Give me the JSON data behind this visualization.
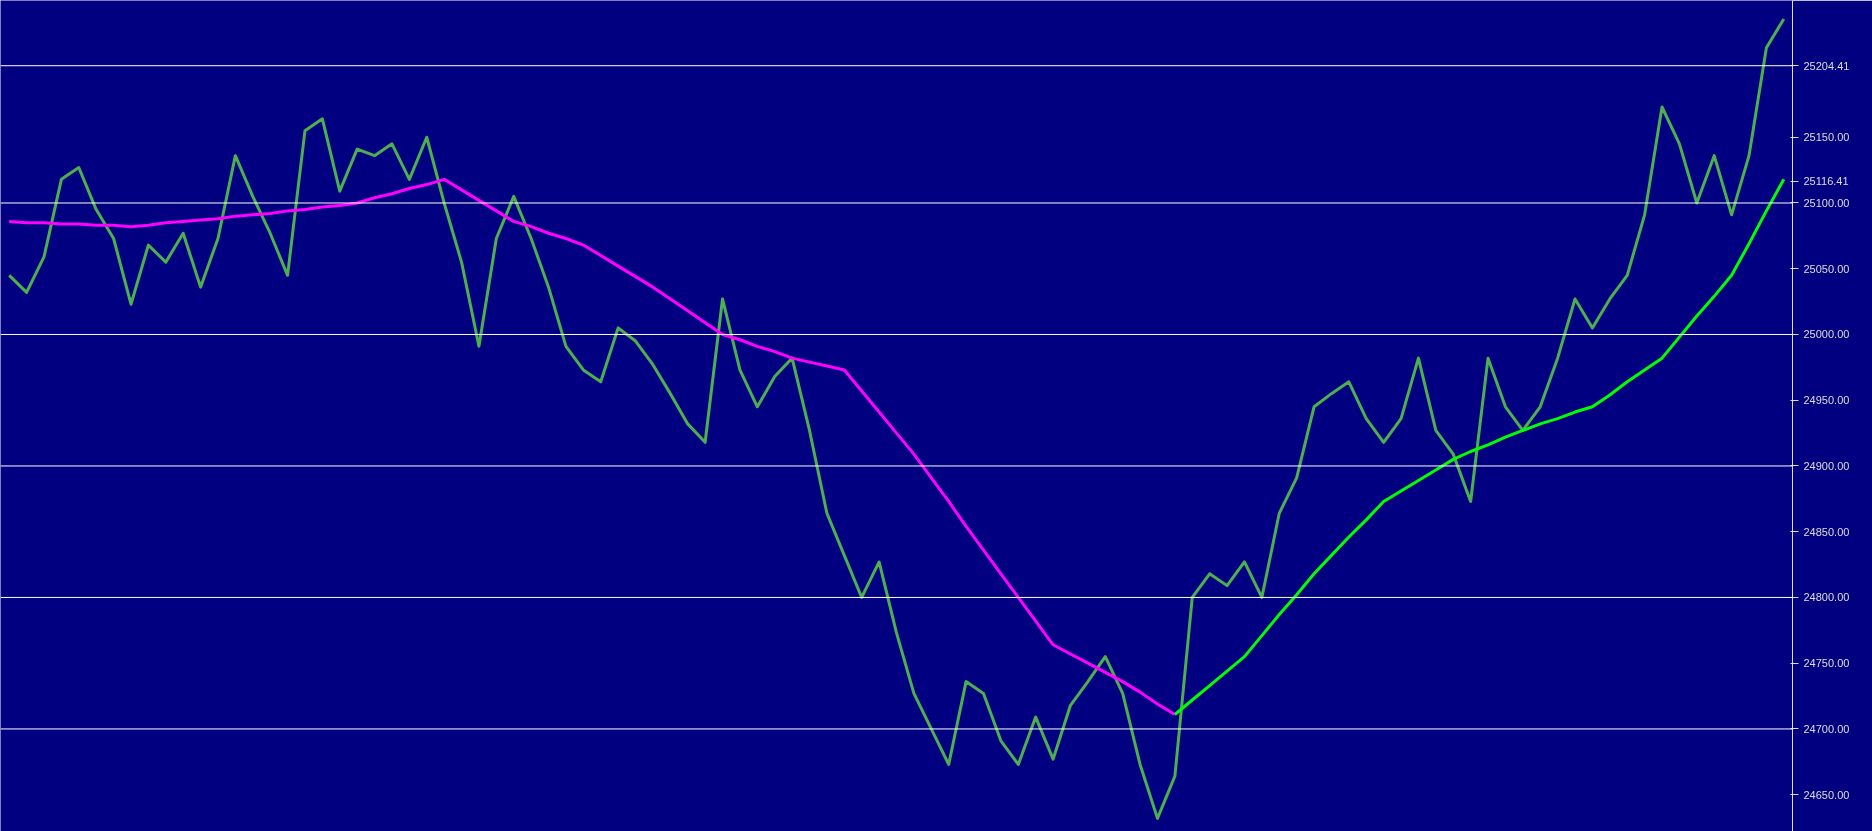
{
  "chart_data": {
    "type": "line",
    "categories": [
      null,
      null,
      null,
      null,
      null,
      null,
      null,
      null,
      null,
      null,
      null,
      null,
      null,
      null,
      null,
      null,
      null,
      null,
      null,
      null,
      null,
      null,
      null,
      null,
      null,
      null,
      null,
      null,
      null,
      null,
      null,
      null,
      null,
      null,
      null,
      null,
      null,
      null,
      null,
      null,
      null,
      null,
      null,
      null,
      null,
      null,
      null,
      null,
      null,
      null,
      null,
      null,
      null,
      null,
      null,
      null,
      null,
      null,
      null,
      null,
      null,
      null,
      null,
      null,
      null,
      null,
      null,
      null,
      null,
      null,
      null,
      null,
      null,
      null,
      null,
      null,
      null,
      null,
      null,
      null,
      null,
      null,
      null,
      null,
      null,
      null,
      null,
      null,
      null,
      null,
      null,
      null,
      null,
      null,
      null,
      null,
      null,
      null,
      null,
      null,
      null,
      null,
      null
    ],
    "series": [
      {
        "color": "#4caf50",
        "values": [
          25045,
          25032,
          25059,
          25118,
          25127,
          25095,
          25073,
          25023,
          25068,
          25055,
          25077,
          25036,
          25073,
          25136,
          25105,
          25077,
          25045,
          25155,
          25164,
          25109,
          25141,
          25136,
          25145,
          25118,
          25150,
          25100,
          25055,
          24991,
          25073,
          25105,
          25073,
          25036,
          24991,
          24973,
          24964,
          25005,
          24995,
          24977,
          24955,
          24932,
          24918,
          25027,
          24973,
          24945,
          24968,
          24982,
          24927,
          24864,
          24832,
          24800,
          24827,
          24773,
          24727,
          24700,
          24673,
          24736,
          24727,
          24691,
          24673,
          24709,
          24677,
          24718,
          24736,
          24755,
          24727,
          24673,
          24632,
          24664,
          24800,
          24818,
          24809,
          24827,
          24800,
          24864,
          24891,
          24945,
          24955,
          24964,
          24936,
          24918,
          24936,
          24982,
          24927,
          24909,
          24873,
          24982,
          24945,
          24927,
          24945,
          24982,
          25027,
          25005,
          25027,
          25045,
          25091,
          25173,
          25145,
          25100,
          25136,
          25091,
          25136,
          25218,
          25240
        ]
      },
      {
        "color": "#ff00ff",
        "values": [
          25086,
          25085,
          25085,
          25084,
          25084,
          25083,
          25083,
          25082,
          25083,
          25085,
          25086,
          25087,
          25088,
          25090,
          25091,
          25092,
          25094,
          25095,
          25097,
          25098,
          25100,
          25104,
          25107,
          25111,
          25114,
          25118,
          25110,
          25102,
          25094,
          25086,
          25082,
          25077,
          25073,
          25068,
          25060,
          25052,
          25044,
          25036,
          25027,
          25018,
          25009,
          25000,
          24996,
          24991,
          24987,
          24982,
          24979,
          24976,
          24973,
          24957,
          24941,
          24925,
          24909,
          24891,
          24873,
          24854,
          24836,
          24818,
          24800,
          24782,
          24764,
          24757,
          24750,
          24743,
          24736,
          24728,
          24719,
          24711,
          null,
          null,
          null,
          null,
          null,
          null,
          null,
          null,
          null,
          null,
          null,
          null,
          null,
          null,
          null,
          null,
          null,
          null,
          null,
          null,
          null,
          null,
          null,
          null,
          null,
          null,
          null,
          null,
          null,
          null,
          null,
          null,
          null,
          null,
          null
        ]
      },
      {
        "color": "#00ff00",
        "values": [
          null,
          null,
          null,
          null,
          null,
          null,
          null,
          null,
          null,
          null,
          null,
          null,
          null,
          null,
          null,
          null,
          null,
          null,
          null,
          null,
          null,
          null,
          null,
          null,
          null,
          null,
          null,
          null,
          null,
          null,
          null,
          null,
          null,
          null,
          null,
          null,
          null,
          null,
          null,
          null,
          null,
          null,
          null,
          null,
          null,
          null,
          null,
          null,
          null,
          null,
          null,
          null,
          null,
          null,
          null,
          null,
          null,
          null,
          null,
          null,
          null,
          null,
          null,
          null,
          null,
          null,
          null,
          24711,
          24722,
          24733,
          24744,
          24755,
          24771,
          24787,
          24802,
          24818,
          24832,
          24846,
          24859,
          24873,
          24881,
          24889,
          24897,
          24905,
          24911,
          24916,
          24922,
          24927,
          24932,
          24936,
          24941,
          24945,
          24954,
          24964,
          24973,
          24982,
          24998,
          25014,
          25029,
          25045,
          25069,
          25094,
          25118
        ]
      }
    ],
    "ylim": [
      24622,
      25254
    ],
    "yticks": [
      {
        "value": 24650,
        "label": "24650.00"
      },
      {
        "value": 24700,
        "label": "24700.00"
      },
      {
        "value": 24750,
        "label": "24750.00"
      },
      {
        "value": 24800,
        "label": "24800.00"
      },
      {
        "value": 24850,
        "label": "24850.00"
      },
      {
        "value": 24900,
        "label": "24900.00"
      },
      {
        "value": 24950,
        "label": "24950.00"
      },
      {
        "value": 25000,
        "label": "25000.00"
      },
      {
        "value": 25050,
        "label": "25050.00"
      },
      {
        "value": 25100,
        "label": "25100.00"
      },
      {
        "value": 25116.41,
        "label": "25116.41"
      },
      {
        "value": 25150,
        "label": "25150.00"
      },
      {
        "value": 25204.41,
        "label": "25204.41"
      }
    ],
    "tick_labels": "y",
    "grid": false,
    "ref_lines": [
      {
        "axis": "y",
        "value": 24700,
        "color": "#ffffff"
      },
      {
        "axis": "y",
        "value": 24800,
        "color": "#ffffff"
      },
      {
        "axis": "y",
        "value": 24900,
        "color": "#ffffff"
      },
      {
        "axis": "y",
        "value": 25000,
        "color": "#ffffff"
      },
      {
        "axis": "y",
        "value": 25100,
        "color": "#ffffff"
      },
      {
        "axis": "y",
        "value": 25204.41,
        "color": "#ffffff"
      }
    ]
  }
}
